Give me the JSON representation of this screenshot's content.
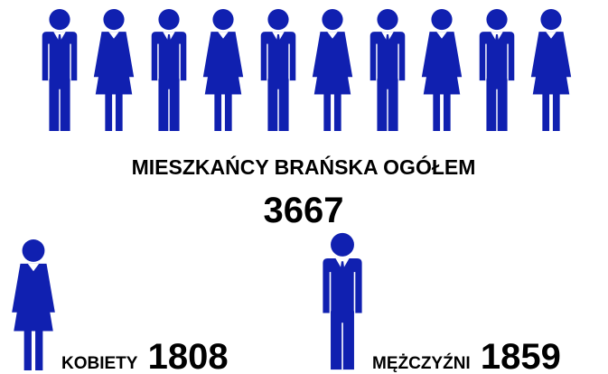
{
  "title": "MIESZKAŃCY BRAŃSKA OGÓŁEM",
  "total": 3667,
  "women": {
    "label": "KOBIETY",
    "value": 1808
  },
  "men": {
    "label": "MĘŻCZYŹNI",
    "value": 1859
  }
}
